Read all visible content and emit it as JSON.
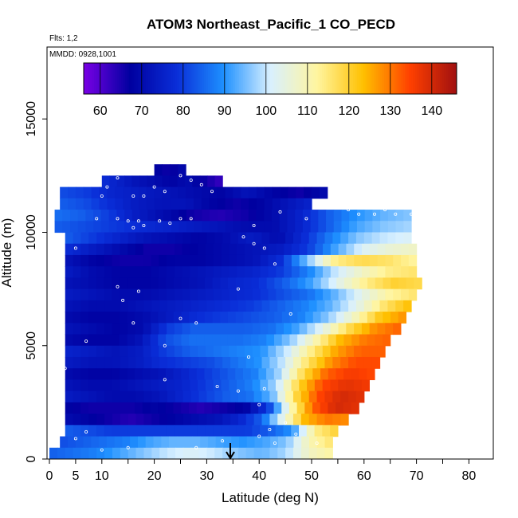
{
  "chart_data": {
    "type": "heatmap",
    "title": "ATOM3 Northeast_Pacific_1 CO_PECD",
    "subtitle_flights": "Flts: 1,2",
    "subtitle_dates": "MMDD: 0928,1001",
    "xlabel": "Latitude (deg N)",
    "ylabel": "Altitude (m)",
    "xlim": [
      0,
      85
    ],
    "ylim": [
      0,
      17500
    ],
    "x_ticks": [
      0,
      5,
      10,
      20,
      30,
      40,
      50,
      60,
      70,
      80
    ],
    "x_minor_ticks": [
      0,
      5,
      10,
      15,
      20,
      25,
      30,
      35,
      40,
      45,
      50,
      55,
      60,
      65,
      70,
      75,
      80,
      85
    ],
    "y_ticks": [
      0,
      5000,
      10000,
      15000
    ],
    "colorbar": {
      "min": 56,
      "max": 146,
      "ticks": [
        60,
        70,
        80,
        90,
        100,
        110,
        120,
        130,
        140
      ],
      "colors": [
        "#7a00e6",
        "#0000a0",
        "#0a2ed8",
        "#1e90ff",
        "#d8f0ff",
        "#fff5a0",
        "#ffc000",
        "#ff4000",
        "#a01010"
      ]
    },
    "annotation": {
      "label": "arrow marker",
      "latitude": 34.5,
      "direction": "down"
    },
    "layers": [
      {
        "alt": [
          12500,
          13000
        ],
        "lat": [
          20,
          26
        ],
        "vals": [
          68,
          66,
          70
        ]
      },
      {
        "alt": [
          12000,
          12500
        ],
        "lat": [
          10,
          33
        ],
        "vals": [
          78,
          75,
          72,
          70,
          68,
          70,
          66,
          62
        ]
      },
      {
        "alt": [
          11500,
          12000
        ],
        "lat": [
          2,
          53
        ],
        "vals": [
          82,
          80,
          76,
          74,
          72,
          70,
          68,
          72,
          68,
          66,
          70
        ]
      },
      {
        "alt": [
          11000,
          11500
        ],
        "lat": [
          2,
          50
        ],
        "vals": [
          84,
          82,
          78,
          74,
          72,
          72,
          68,
          66,
          68,
          72,
          76
        ]
      },
      {
        "alt": [
          10500,
          11000
        ],
        "lat": [
          1,
          69
        ],
        "vals": [
          86,
          84,
          80,
          74,
          70,
          66,
          64,
          66,
          70,
          76,
          84,
          90,
          94,
          96
        ]
      },
      {
        "alt": [
          10000,
          10500
        ],
        "lat": [
          1,
          69
        ],
        "vals": [
          84,
          82,
          80,
          78,
          76,
          74,
          72,
          70,
          70,
          76,
          84,
          92,
          96,
          98
        ]
      },
      {
        "alt": [
          9500,
          10000
        ],
        "lat": [
          3,
          69
        ],
        "vals": [
          84,
          80,
          76,
          72,
          70,
          68,
          70,
          74,
          70,
          78,
          88,
          96,
          100,
          102
        ]
      },
      {
        "alt": [
          9000,
          9500
        ],
        "lat": [
          3,
          70
        ],
        "vals": [
          78,
          74,
          70,
          66,
          66,
          68,
          70,
          72,
          74,
          80,
          92,
          102,
          106,
          108
        ]
      },
      {
        "alt": [
          8500,
          9000
        ],
        "lat": [
          3,
          70
        ],
        "vals": [
          72,
          68,
          66,
          66,
          68,
          68,
          70,
          72,
          78,
          96,
          114,
          118,
          116,
          112
        ]
      },
      {
        "alt": [
          8000,
          8500
        ],
        "lat": [
          3,
          70
        ],
        "vals": [
          74,
          70,
          68,
          68,
          70,
          72,
          74,
          76,
          80,
          88,
          100,
          108,
          114,
          116
        ]
      },
      {
        "alt": [
          7500,
          8000
        ],
        "lat": [
          3,
          71
        ],
        "vals": [
          72,
          70,
          68,
          68,
          70,
          72,
          76,
          78,
          84,
          92,
          104,
          114,
          120,
          118
        ]
      },
      {
        "alt": [
          7000,
          7500
        ],
        "lat": [
          3,
          70
        ],
        "vals": [
          74,
          72,
          70,
          70,
          72,
          74,
          76,
          78,
          82,
          86,
          94,
          104,
          112,
          116
        ]
      },
      {
        "alt": [
          6500,
          7000
        ],
        "lat": [
          3,
          69
        ],
        "vals": [
          72,
          70,
          70,
          72,
          74,
          76,
          78,
          80,
          84,
          88,
          94,
          104,
          116,
          124
        ]
      },
      {
        "alt": [
          6000,
          6500
        ],
        "lat": [
          3,
          68
        ],
        "vals": [
          70,
          68,
          68,
          70,
          74,
          78,
          80,
          82,
          84,
          88,
          96,
          108,
          122,
          128
        ]
      },
      {
        "alt": [
          5500,
          6000
        ],
        "lat": [
          3,
          67
        ],
        "vals": [
          72,
          70,
          68,
          70,
          80,
          84,
          84,
          84,
          86,
          92,
          104,
          118,
          128,
          132
        ]
      },
      {
        "alt": [
          5000,
          5500
        ],
        "lat": [
          3,
          65
        ],
        "vals": [
          70,
          68,
          68,
          72,
          82,
          86,
          86,
          86,
          88,
          96,
          110,
          124,
          130,
          132
        ]
      },
      {
        "alt": [
          4500,
          5000
        ],
        "lat": [
          3,
          64
        ],
        "vals": [
          76,
          74,
          72,
          74,
          80,
          84,
          86,
          88,
          90,
          100,
          114,
          126,
          132,
          132
        ]
      },
      {
        "alt": [
          4000,
          4500
        ],
        "lat": [
          3,
          63
        ],
        "vals": [
          74,
          72,
          72,
          74,
          78,
          80,
          82,
          86,
          90,
          100,
          116,
          128,
          134,
          134
        ]
      },
      {
        "alt": [
          3500,
          4000
        ],
        "lat": [
          3,
          62
        ],
        "vals": [
          70,
          68,
          68,
          70,
          72,
          76,
          80,
          84,
          88,
          98,
          118,
          132,
          136,
          134
        ]
      },
      {
        "alt": [
          3000,
          3500
        ],
        "lat": [
          3,
          61
        ],
        "vals": [
          72,
          70,
          70,
          72,
          74,
          76,
          80,
          84,
          88,
          98,
          120,
          134,
          138,
          136
        ]
      },
      {
        "alt": [
          2500,
          3000
        ],
        "lat": [
          3,
          60
        ],
        "vals": [
          74,
          72,
          70,
          70,
          72,
          76,
          80,
          84,
          86,
          94,
          118,
          134,
          140,
          138
        ]
      },
      {
        "alt": [
          2000,
          2500
        ],
        "lat": [
          3,
          59
        ],
        "vals": [
          68,
          66,
          66,
          66,
          68,
          66,
          64,
          66,
          68,
          80,
          110,
          132,
          140,
          138
        ]
      },
      {
        "alt": [
          1500,
          2000
        ],
        "lat": [
          3,
          57
        ],
        "vals": [
          70,
          68,
          66,
          64,
          66,
          68,
          70,
          72,
          76,
          84,
          104,
          124,
          130,
          128
        ]
      },
      {
        "alt": [
          1000,
          1500
        ],
        "lat": [
          3,
          55
        ],
        "vals": [
          84,
          82,
          80,
          80,
          80,
          80,
          80,
          80,
          80,
          84,
          90,
          114,
          120
        ]
      },
      {
        "alt": [
          500,
          1000
        ],
        "lat": [
          2,
          54
        ],
        "vals": [
          82,
          84,
          86,
          88,
          92,
          94,
          94,
          92,
          90,
          92,
          96,
          110,
          116
        ]
      },
      {
        "alt": [
          0,
          500
        ],
        "lat": [
          0,
          54
        ],
        "vals": [
          84,
          86,
          88,
          92,
          96,
          100,
          102,
          100,
          96,
          94,
          98,
          108,
          112
        ]
      }
    ],
    "samples": [
      [
        10,
        11600
      ],
      [
        11,
        12000
      ],
      [
        13,
        12400
      ],
      [
        16,
        11600
      ],
      [
        18,
        11600
      ],
      [
        20,
        12000
      ],
      [
        22,
        11800
      ],
      [
        25,
        12500
      ],
      [
        27,
        12300
      ],
      [
        29,
        12100
      ],
      [
        31,
        11800
      ],
      [
        9,
        10600
      ],
      [
        13,
        10600
      ],
      [
        15,
        10500
      ],
      [
        16,
        10200
      ],
      [
        17,
        10500
      ],
      [
        18,
        10300
      ],
      [
        21,
        10500
      ],
      [
        23,
        10400
      ],
      [
        25,
        10600
      ],
      [
        27,
        10600
      ],
      [
        37,
        9800
      ],
      [
        39,
        9500
      ],
      [
        39,
        10300
      ],
      [
        41,
        9300
      ],
      [
        43,
        8600
      ],
      [
        44,
        10900
      ],
      [
        49,
        10600
      ],
      [
        57,
        11000
      ],
      [
        59,
        10800
      ],
      [
        61,
        11200
      ],
      [
        62,
        10800
      ],
      [
        64,
        11000
      ],
      [
        66,
        10800
      ],
      [
        69,
        10800
      ],
      [
        5,
        9300
      ],
      [
        13,
        7600
      ],
      [
        14,
        7000
      ],
      [
        16,
        6000
      ],
      [
        17,
        7400
      ],
      [
        22,
        5000
      ],
      [
        25,
        6200
      ],
      [
        28,
        6000
      ],
      [
        36,
        7500
      ],
      [
        38,
        4500
      ],
      [
        46,
        6400
      ],
      [
        3,
        4000
      ],
      [
        7,
        5200
      ],
      [
        22,
        3500
      ],
      [
        32,
        3200
      ],
      [
        36,
        3000
      ],
      [
        40,
        2400
      ],
      [
        41,
        3100
      ],
      [
        42,
        1300
      ],
      [
        45,
        1600
      ],
      [
        5,
        900
      ],
      [
        7,
        1200
      ],
      [
        10,
        400
      ],
      [
        15,
        500
      ],
      [
        28,
        500
      ],
      [
        33,
        800
      ],
      [
        40,
        1000
      ],
      [
        43,
        700
      ],
      [
        47,
        1100
      ],
      [
        51,
        700
      ]
    ]
  }
}
